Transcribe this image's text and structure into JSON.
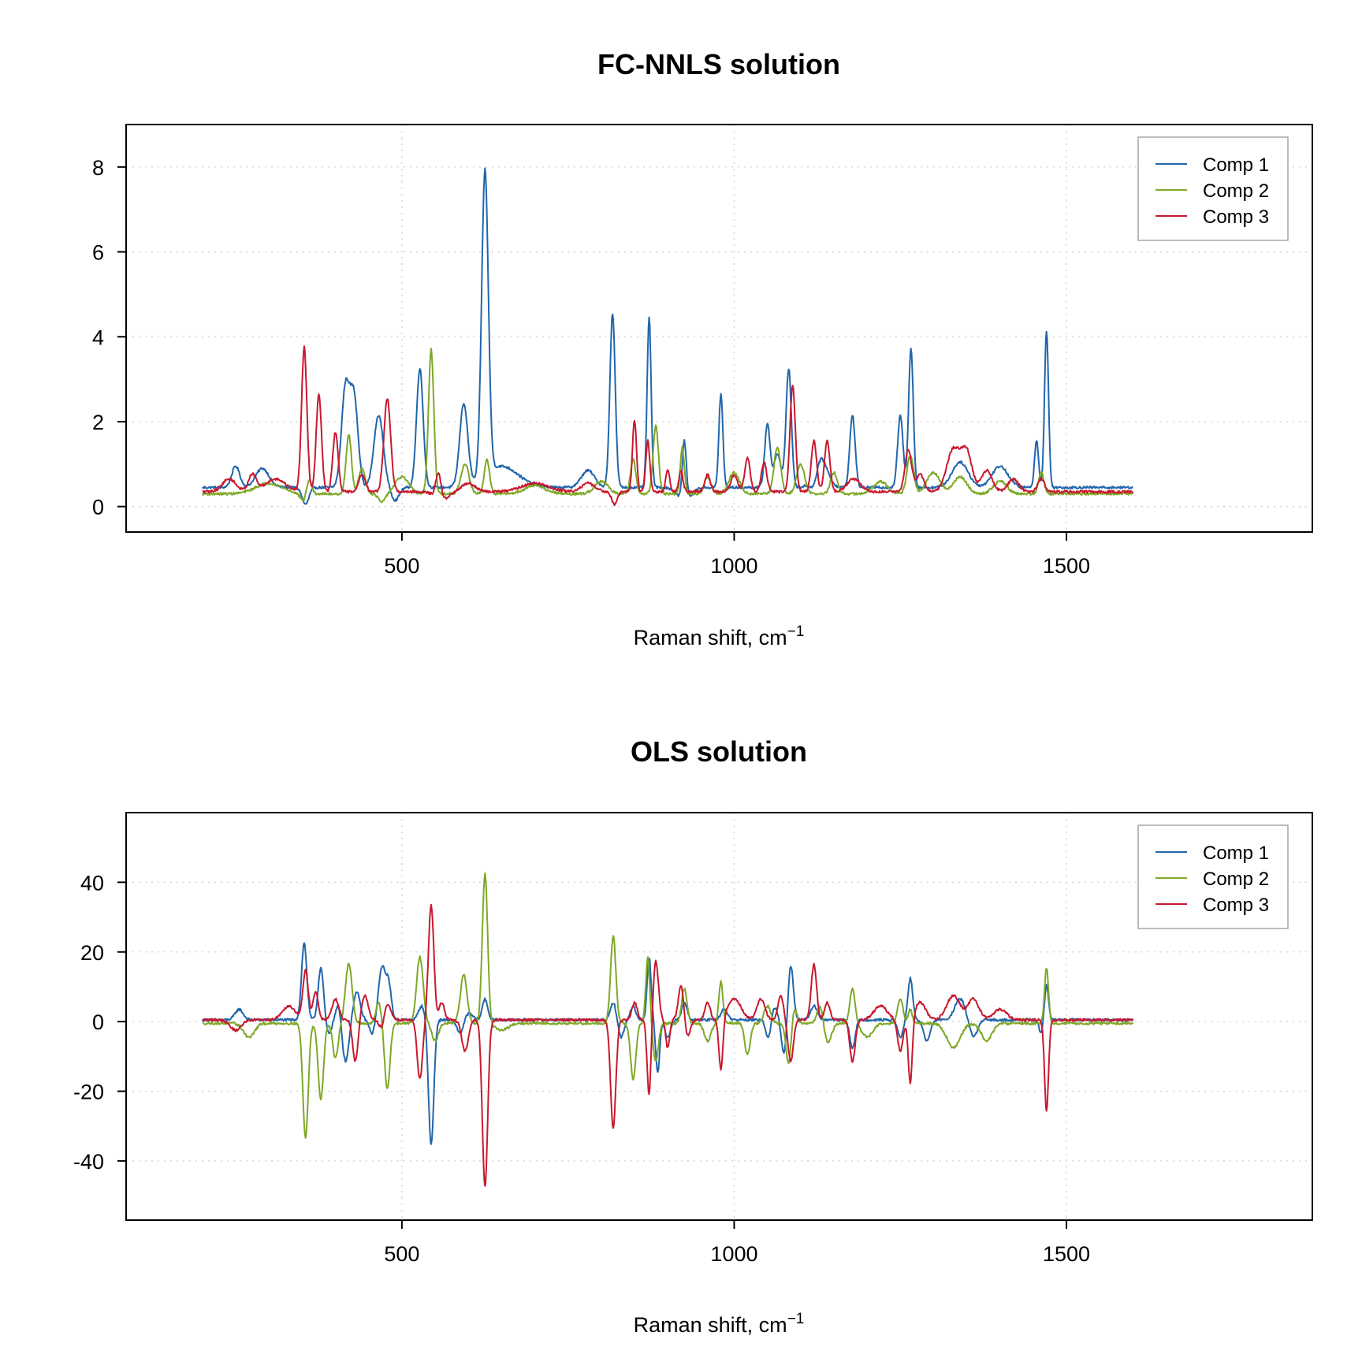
{
  "colors": {
    "comp1": "#2166ac",
    "comp2": "#7fa828",
    "comp3": "#c8192e"
  },
  "chart_data": [
    {
      "type": "line",
      "title": "FC-NNLS solution",
      "xlabel": "Raman shift, cm",
      "xlabel_sup": "−1",
      "xlim": [
        85,
        1870
      ],
      "ylim": [
        -0.6,
        9.0
      ],
      "xticks": [
        500,
        1000,
        1500
      ],
      "yticks": [
        0,
        2,
        4,
        6,
        8
      ],
      "grid": true,
      "legend_position": "top-right",
      "x_range": [
        200,
        1600
      ],
      "series": [
        {
          "name": "Comp 1",
          "color": "#2166ac",
          "baseline": 0.45,
          "peaks": [
            [
              250,
              0.5,
              6
            ],
            [
              290,
              0.45,
              10
            ],
            [
              415,
              2.3,
              6
            ],
            [
              428,
              2.1,
              6
            ],
            [
              465,
              1.7,
              7
            ],
            [
              527,
              2.8,
              5
            ],
            [
              593,
              1.95,
              6
            ],
            [
              625,
              7.2,
              5
            ],
            [
              650,
              0.5,
              25
            ],
            [
              780,
              0.4,
              10
            ],
            [
              817,
              4.1,
              4
            ],
            [
              872,
              4.0,
              3
            ],
            [
              925,
              1.4,
              3
            ],
            [
              980,
              2.2,
              3
            ],
            [
              1050,
              1.5,
              4
            ],
            [
              1065,
              0.8,
              5
            ],
            [
              1082,
              2.8,
              4
            ],
            [
              1130,
              0.7,
              10
            ],
            [
              1178,
              1.7,
              4
            ],
            [
              1250,
              1.7,
              4
            ],
            [
              1266,
              3.3,
              3.5
            ],
            [
              1340,
              0.6,
              12
            ],
            [
              1400,
              0.5,
              12
            ],
            [
              1455,
              1.1,
              3
            ],
            [
              1470,
              3.7,
              3
            ]
          ],
          "dips": [
            [
              355,
              0.4,
              5
            ],
            [
              490,
              0.3,
              6
            ],
            [
              925,
              0.3,
              10
            ],
            [
              1120,
              0.35,
              5
            ]
          ]
        },
        {
          "name": "Comp 2",
          "color": "#7fa828",
          "baseline": 0.3,
          "peaks": [
            [
              300,
              0.25,
              20
            ],
            [
              360,
              0.5,
              4
            ],
            [
              420,
              1.4,
              4
            ],
            [
              440,
              0.6,
              5
            ],
            [
              500,
              0.4,
              10
            ],
            [
              544,
              3.4,
              4
            ],
            [
              595,
              0.7,
              6
            ],
            [
              628,
              0.8,
              4
            ],
            [
              700,
              0.2,
              15
            ],
            [
              800,
              0.3,
              10
            ],
            [
              848,
              0.8,
              4
            ],
            [
              882,
              1.6,
              4
            ],
            [
              922,
              1.1,
              3
            ],
            [
              960,
              0.4,
              5
            ],
            [
              1000,
              0.5,
              8
            ],
            [
              1065,
              1.1,
              5
            ],
            [
              1100,
              0.7,
              6
            ],
            [
              1150,
              0.5,
              5
            ],
            [
              1220,
              0.3,
              10
            ],
            [
              1265,
              0.9,
              5
            ],
            [
              1300,
              0.5,
              10
            ],
            [
              1340,
              0.4,
              10
            ],
            [
              1400,
              0.3,
              10
            ],
            [
              1462,
              0.5,
              4
            ]
          ],
          "dips": [
            [
              355,
              0.25,
              6
            ],
            [
              470,
              0.2,
              5
            ]
          ]
        },
        {
          "name": "Comp 3",
          "color": "#c8192e",
          "baseline": 0.35,
          "peaks": [
            [
              240,
              0.3,
              10
            ],
            [
              275,
              0.4,
              6
            ],
            [
              310,
              0.3,
              15
            ],
            [
              353,
              3.4,
              4
            ],
            [
              375,
              2.3,
              4
            ],
            [
              400,
              1.4,
              4
            ],
            [
              440,
              0.4,
              5
            ],
            [
              478,
              2.2,
              5
            ],
            [
              555,
              0.6,
              4
            ],
            [
              600,
              0.2,
              10
            ],
            [
              700,
              0.2,
              20
            ],
            [
              780,
              0.2,
              10
            ],
            [
              850,
              1.7,
              3
            ],
            [
              870,
              1.2,
              3
            ],
            [
              900,
              0.5,
              3
            ],
            [
              920,
              0.5,
              3
            ],
            [
              960,
              0.4,
              4
            ],
            [
              1000,
              0.4,
              5
            ],
            [
              1020,
              0.8,
              4
            ],
            [
              1045,
              0.7,
              4
            ],
            [
              1088,
              2.5,
              4
            ],
            [
              1120,
              1.2,
              4
            ],
            [
              1140,
              1.2,
              4
            ],
            [
              1180,
              0.3,
              10
            ],
            [
              1262,
              1.0,
              5
            ],
            [
              1280,
              0.4,
              6
            ],
            [
              1330,
              1.0,
              10
            ],
            [
              1350,
              0.9,
              8
            ],
            [
              1380,
              0.5,
              8
            ],
            [
              1420,
              0.3,
              8
            ],
            [
              1462,
              0.3,
              5
            ]
          ],
          "dips": [
            [
              560,
              0.2,
              10
            ],
            [
              820,
              0.3,
              4
            ]
          ]
        }
      ]
    },
    {
      "type": "line",
      "title": "OLS solution",
      "xlabel": "Raman shift, cm",
      "xlabel_sup": "−1",
      "xlim": [
        85,
        1870
      ],
      "ylim": [
        -57,
        60
      ],
      "xticks": [
        500,
        1000,
        1500
      ],
      "yticks": [
        -40,
        -20,
        0,
        20,
        40
      ],
      "grid": true,
      "legend_position": "top-right",
      "x_range": [
        200,
        1600
      ],
      "series": [
        {
          "name": "Comp 1",
          "color": "#2166ac",
          "baseline": 0.5,
          "peaks": [
            [
              255,
              3,
              6
            ],
            [
              353,
              22,
              4
            ],
            [
              378,
              15,
              4
            ],
            [
              405,
              5,
              4
            ],
            [
              432,
              8,
              5
            ],
            [
              470,
              15,
              5
            ],
            [
              480,
              10,
              4
            ],
            [
              530,
              4,
              5
            ],
            [
              600,
              2,
              6
            ],
            [
              625,
              6,
              4
            ],
            [
              818,
              5,
              4
            ],
            [
              848,
              4,
              4
            ],
            [
              872,
              18,
              3
            ],
            [
              925,
              5,
              4
            ],
            [
              985,
              3,
              5
            ],
            [
              1060,
              4,
              5
            ],
            [
              1085,
              16,
              4
            ],
            [
              1120,
              4,
              5
            ],
            [
              1265,
              12,
              3.5
            ],
            [
              1340,
              6,
              8
            ],
            [
              1470,
              10,
              3
            ]
          ],
          "dips": [
            [
              390,
              4,
              4
            ],
            [
              415,
              12,
              5
            ],
            [
              455,
              4,
              4
            ],
            [
              544,
              36,
              4
            ],
            [
              588,
              4,
              5
            ],
            [
              830,
              5,
              4
            ],
            [
              885,
              15,
              3
            ],
            [
              900,
              5,
              4
            ],
            [
              1052,
              6,
              4
            ],
            [
              1075,
              10,
              4
            ],
            [
              1178,
              8,
              4
            ],
            [
              1250,
              5,
              4
            ],
            [
              1290,
              6,
              5
            ],
            [
              1360,
              5,
              6
            ],
            [
              1462,
              4,
              3
            ]
          ]
        },
        {
          "name": "Comp 2",
          "color": "#7fa828",
          "baseline": -0.5,
          "peaks": [
            [
              420,
              17,
              5
            ],
            [
              465,
              6,
              4
            ],
            [
              527,
              19,
              5
            ],
            [
              593,
              14,
              5
            ],
            [
              625,
              43,
              4
            ],
            [
              818,
              25,
              4
            ],
            [
              870,
              19,
              3
            ],
            [
              925,
              10,
              4
            ],
            [
              980,
              12,
              3
            ],
            [
              1050,
              5,
              5
            ],
            [
              1090,
              5,
              4
            ],
            [
              1130,
              6,
              5
            ],
            [
              1178,
              10,
              4
            ],
            [
              1250,
              7,
              4
            ],
            [
              1265,
              4,
              3
            ],
            [
              1470,
              16,
              3
            ]
          ],
          "dips": [
            [
              270,
              4,
              8
            ],
            [
              355,
              33,
              4
            ],
            [
              378,
              22,
              4
            ],
            [
              400,
              10,
              4
            ],
            [
              478,
              19,
              4
            ],
            [
              550,
              5,
              5
            ],
            [
              650,
              2,
              10
            ],
            [
              848,
              16,
              4
            ],
            [
              882,
              11,
              4
            ],
            [
              960,
              5,
              5
            ],
            [
              1020,
              9,
              4
            ],
            [
              1082,
              12,
              4
            ],
            [
              1140,
              6,
              6
            ],
            [
              1200,
              4,
              8
            ],
            [
              1330,
              7,
              10
            ],
            [
              1380,
              5,
              8
            ]
          ]
        },
        {
          "name": "Comp 3",
          "color": "#c8192e",
          "baseline": 0.5,
          "peaks": [
            [
              330,
              4,
              10
            ],
            [
              355,
              14,
              4
            ],
            [
              370,
              8,
              4
            ],
            [
              400,
              6,
              5
            ],
            [
              444,
              7,
              5
            ],
            [
              478,
              5,
              5
            ],
            [
              544,
              33,
              4
            ],
            [
              560,
              5,
              4
            ],
            [
              850,
              5,
              4
            ],
            [
              882,
              17,
              4
            ],
            [
              920,
              10,
              4
            ],
            [
              960,
              5,
              4
            ],
            [
              1000,
              6,
              10
            ],
            [
              1040,
              6,
              6
            ],
            [
              1070,
              7,
              4
            ],
            [
              1120,
              16,
              4
            ],
            [
              1140,
              5,
              4
            ],
            [
              1220,
              4,
              10
            ],
            [
              1280,
              5,
              8
            ],
            [
              1330,
              7,
              10
            ],
            [
              1360,
              6,
              8
            ],
            [
              1400,
              3,
              10
            ]
          ],
          "dips": [
            [
              250,
              3,
              8
            ],
            [
              430,
              12,
              4
            ],
            [
              470,
              3,
              4
            ],
            [
              527,
              17,
              4
            ],
            [
              595,
              9,
              5
            ],
            [
              625,
              48,
              4
            ],
            [
              818,
              31,
              4
            ],
            [
              872,
              22,
              3
            ],
            [
              900,
              8,
              3
            ],
            [
              930,
              5,
              4
            ],
            [
              980,
              15,
              3
            ],
            [
              1085,
              12,
              4
            ],
            [
              1178,
              12,
              4
            ],
            [
              1250,
              9,
              4
            ],
            [
              1265,
              19,
              3
            ],
            [
              1470,
              26,
              3
            ]
          ]
        }
      ]
    }
  ]
}
